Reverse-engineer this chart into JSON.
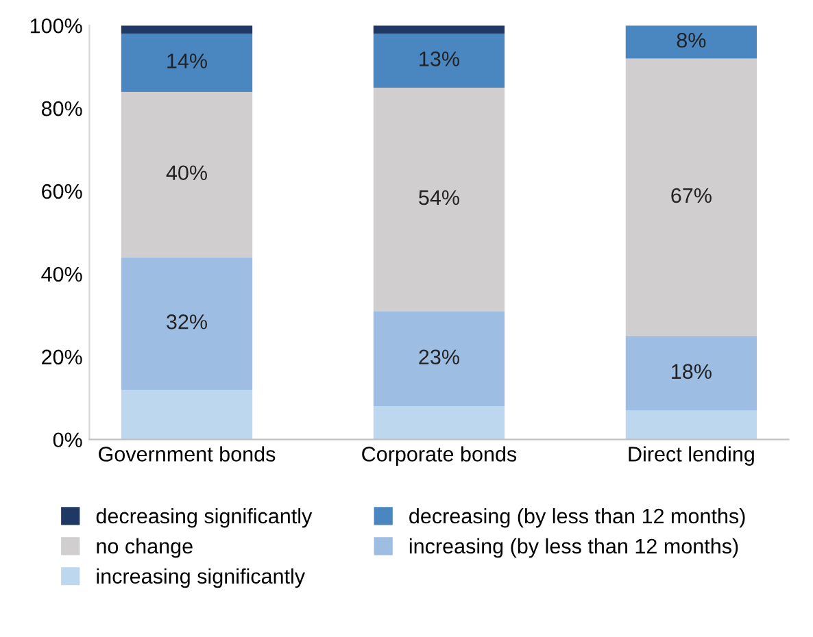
{
  "chart_data": {
    "type": "bar",
    "stacked": true,
    "categories": [
      "Government bonds",
      "Corporate bonds",
      "Direct lending"
    ],
    "series": [
      {
        "name": "increasing significantly",
        "color": "#bdd7ee",
        "values": [
          12,
          8,
          7
        ],
        "value_labels": [
          null,
          null,
          null
        ]
      },
      {
        "name": "increasing (by less than 12 months)",
        "color": "#9dbde3",
        "values": [
          32,
          23,
          18
        ],
        "value_labels": [
          "32%",
          "23%",
          "18%"
        ]
      },
      {
        "name": "no change",
        "color": "#d0cece",
        "values": [
          40,
          54,
          67
        ],
        "value_labels": [
          "40%",
          "54%",
          "67%"
        ]
      },
      {
        "name": "decreasing (by less than 12 months)",
        "color": "#4a86c0",
        "values": [
          14,
          13,
          8
        ],
        "value_labels": [
          "14%",
          "13%",
          "8%"
        ]
      },
      {
        "name": "decreasing significantly",
        "color": "#1f3864",
        "values": [
          2,
          2,
          0
        ],
        "value_labels": [
          null,
          null,
          null
        ]
      }
    ],
    "ylim": [
      0,
      100
    ],
    "yticks": [
      {
        "value": 0,
        "label": "0%"
      },
      {
        "value": 20,
        "label": "20%"
      },
      {
        "value": 40,
        "label": "40%"
      },
      {
        "value": 60,
        "label": "60%"
      },
      {
        "value": 80,
        "label": "80%"
      },
      {
        "value": 100,
        "label": "100%"
      }
    ],
    "legend": "bottom",
    "grid": false
  }
}
